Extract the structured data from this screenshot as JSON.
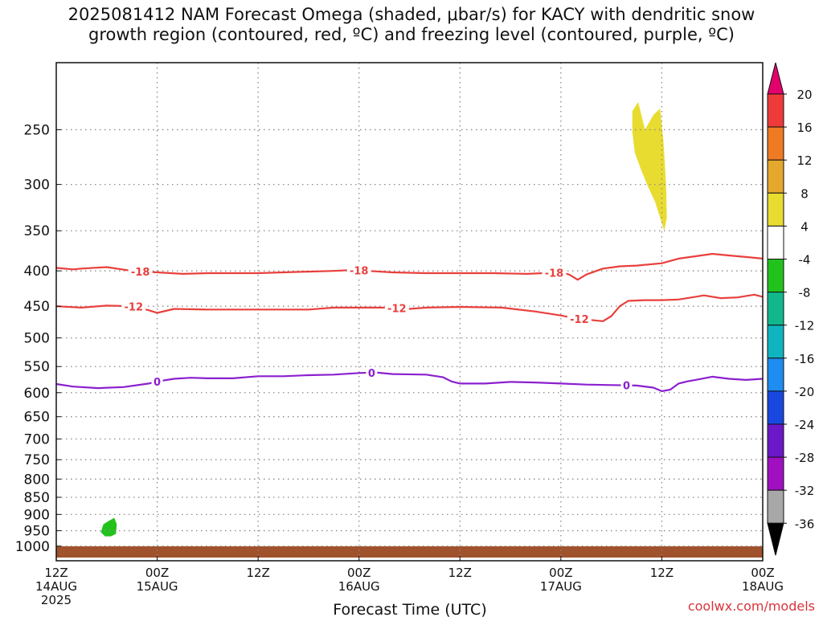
{
  "chart_data": {
    "type": "time-height contour",
    "title": "2025081412 NAM Forecast Omega (shaded, μbar/s) for KACY with dendritic snow\ngrowth region (contoured, red, ºC) and freezing level (contoured, purple, ºC)",
    "xlabel": "Forecast Time (UTC)",
    "ylabel": "",
    "x_range_hours": [
      0,
      84
    ],
    "x_ticks": [
      {
        "hour": 0,
        "l1": "12Z",
        "l2": "14AUG",
        "l3": "2025"
      },
      {
        "hour": 12,
        "l1": "00Z",
        "l2": "15AUG",
        "l3": ""
      },
      {
        "hour": 24,
        "l1": "12Z",
        "l2": "",
        "l3": ""
      },
      {
        "hour": 36,
        "l1": "00Z",
        "l2": "16AUG",
        "l3": ""
      },
      {
        "hour": 48,
        "l1": "12Z",
        "l2": "",
        "l3": ""
      },
      {
        "hour": 60,
        "l1": "00Z",
        "l2": "17AUG",
        "l3": ""
      },
      {
        "hour": 72,
        "l1": "12Z",
        "l2": "",
        "l3": ""
      },
      {
        "hour": 84,
        "l1": "00Z",
        "l2": "18AUG",
        "l3": ""
      }
    ],
    "y_axis": {
      "scale": "log-pressure (inverted)",
      "units": "hPa",
      "range": [
        1050,
        200
      ],
      "ticks": [
        "250",
        "300",
        "350",
        "400",
        "450",
        "500",
        "550",
        "600",
        "650",
        "700",
        "750",
        "800",
        "850",
        "900",
        "950",
        "1000"
      ]
    },
    "grid": true,
    "contours": [
      {
        "label": "-18",
        "color": "#e8403c",
        "points": [
          [
            0,
            396
          ],
          [
            2,
            398
          ],
          [
            3,
            397
          ],
          [
            6,
            395
          ],
          [
            9,
            400
          ],
          [
            12,
            402
          ],
          [
            15,
            404
          ],
          [
            18,
            403
          ],
          [
            21,
            403
          ],
          [
            24,
            403
          ],
          [
            27,
            402
          ],
          [
            30,
            401
          ],
          [
            33,
            400
          ],
          [
            35,
            399
          ],
          [
            37,
            400
          ],
          [
            40,
            402
          ],
          [
            44,
            403
          ],
          [
            48,
            403
          ],
          [
            52,
            403
          ],
          [
            56,
            404
          ],
          [
            60,
            402
          ],
          [
            61,
            405
          ],
          [
            62,
            412
          ],
          [
            63,
            405
          ],
          [
            65,
            397
          ],
          [
            67,
            394
          ],
          [
            69,
            393
          ],
          [
            72,
            390
          ],
          [
            74,
            384
          ],
          [
            76,
            381
          ],
          [
            78,
            378
          ],
          [
            80,
            380
          ],
          [
            82,
            382
          ],
          [
            84,
            384
          ]
        ],
        "label_at": [
          10,
          36,
          59.2
        ]
      },
      {
        "label": "-12",
        "color": "#e8403c",
        "points": [
          [
            0,
            450
          ],
          [
            3,
            452
          ],
          [
            6,
            449
          ],
          [
            9,
            450
          ],
          [
            11,
            456
          ],
          [
            12,
            460
          ],
          [
            13,
            457
          ],
          [
            14,
            454
          ],
          [
            18,
            455
          ],
          [
            24,
            455
          ],
          [
            30,
            455
          ],
          [
            33,
            452
          ],
          [
            36,
            452
          ],
          [
            39,
            452
          ],
          [
            42,
            454
          ],
          [
            44,
            452
          ],
          [
            48,
            451
          ],
          [
            53,
            452
          ],
          [
            57,
            458
          ],
          [
            60,
            464
          ],
          [
            62,
            469
          ],
          [
            65,
            473
          ],
          [
            66,
            465
          ],
          [
            67,
            450
          ],
          [
            68,
            442
          ],
          [
            70,
            441
          ],
          [
            72,
            441
          ],
          [
            74,
            440
          ],
          [
            76,
            436
          ],
          [
            77,
            434
          ],
          [
            79,
            438
          ],
          [
            81,
            437
          ],
          [
            83,
            433
          ],
          [
            84,
            436
          ]
        ],
        "label_at": [
          9.2,
          40.5,
          62.2
        ]
      },
      {
        "label": "0",
        "color": "#8b1fcf",
        "points": [
          [
            0,
            583
          ],
          [
            2,
            588
          ],
          [
            5,
            591
          ],
          [
            8,
            589
          ],
          [
            11,
            582
          ],
          [
            12,
            578
          ],
          [
            14,
            573
          ],
          [
            16,
            571
          ],
          [
            18,
            572
          ],
          [
            21,
            572
          ],
          [
            24,
            568
          ],
          [
            27,
            568
          ],
          [
            30,
            566
          ],
          [
            33,
            565
          ],
          [
            36,
            562
          ],
          [
            38,
            561
          ],
          [
            40,
            564
          ],
          [
            44,
            565
          ],
          [
            46,
            570
          ],
          [
            47,
            578
          ],
          [
            48,
            582
          ],
          [
            51,
            582
          ],
          [
            54,
            579
          ],
          [
            57,
            580
          ],
          [
            60,
            582
          ],
          [
            63,
            584
          ],
          [
            66,
            585
          ],
          [
            69,
            586
          ],
          [
            71,
            590
          ],
          [
            72,
            597
          ],
          [
            73,
            594
          ],
          [
            74,
            582
          ],
          [
            75,
            578
          ],
          [
            76,
            575
          ],
          [
            78,
            569
          ],
          [
            80,
            573
          ],
          [
            82,
            575
          ],
          [
            84,
            573
          ]
        ],
        "label_at": [
          12,
          37.5,
          67.8
        ]
      }
    ],
    "shaded_regions": [
      {
        "value_range": [
          4,
          8
        ],
        "color": "#e8dc30",
        "points": [
          [
            68.5,
            235
          ],
          [
            69.2,
            228
          ],
          [
            70.0,
            250
          ],
          [
            71.0,
            238
          ],
          [
            71.8,
            233
          ],
          [
            72.2,
            260
          ],
          [
            72.5,
            300
          ],
          [
            72.6,
            335
          ],
          [
            72.3,
            350
          ],
          [
            71.2,
            318
          ],
          [
            70.4,
            303
          ],
          [
            69.6,
            287
          ],
          [
            68.8,
            270
          ],
          [
            68.5,
            252
          ]
        ]
      },
      {
        "value_range": [
          -8,
          -4
        ],
        "color": "#22c21d",
        "points": [
          [
            5.3,
            955
          ],
          [
            5.6,
            930
          ],
          [
            6.2,
            920
          ],
          [
            6.9,
            910
          ],
          [
            7.2,
            930
          ],
          [
            7.1,
            960
          ],
          [
            6.5,
            968
          ],
          [
            5.8,
            968
          ]
        ]
      }
    ],
    "terrain": {
      "color": "#a0522d",
      "label": ""
    },
    "colorbar": {
      "levels": [
        20,
        16,
        12,
        8,
        4,
        -4,
        -8,
        -12,
        -16,
        -20,
        -24,
        -28,
        -32,
        -36
      ],
      "colors": [
        "#e4006c",
        "#ef3a3a",
        "#ef7a24",
        "#e5a82c",
        "#e8dc30",
        "#ffffff",
        "#22c21d",
        "#12b88c",
        "#10b4c0",
        "#1e8cf0",
        "#1848e0",
        "#6a18c8",
        "#a010c0",
        "#a8a8a8",
        "#000000"
      ]
    }
  },
  "credit": "coolwx.com/models"
}
